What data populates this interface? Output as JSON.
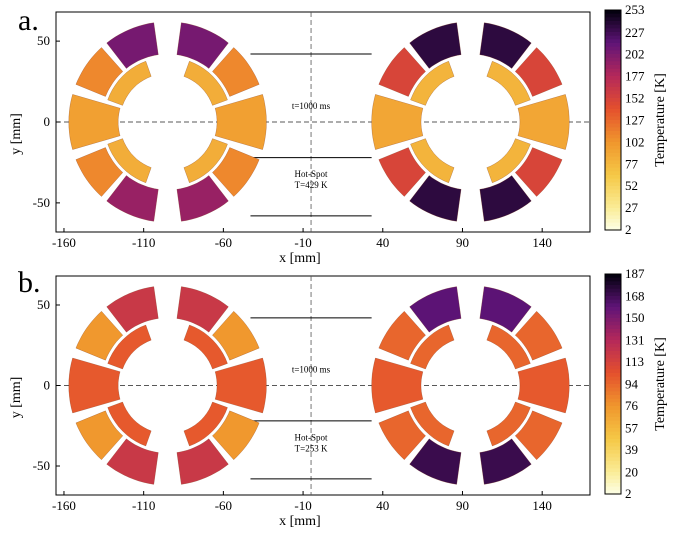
{
  "chart_data": [
    {
      "type": "heatmap",
      "panel_label": "a.",
      "xlabel": "x [mm]",
      "ylabel": "y [mm]",
      "xlim": [
        -165,
        170
      ],
      "ylim": [
        -68,
        68
      ],
      "xticks": [
        -160,
        -110,
        -60,
        -10,
        40,
        90,
        140
      ],
      "yticks": [
        -50,
        0,
        50
      ],
      "colorbar": {
        "label": "Temperature [K]",
        "min": 2,
        "max": 253,
        "ticks": [
          253,
          227,
          202,
          177,
          152,
          127,
          102,
          77,
          52,
          27,
          2
        ]
      },
      "annotations": [
        "t=1000 ms",
        "Hot-Spot",
        "T=429 K"
      ],
      "magnets": [
        {
          "center_x": -95,
          "blocks": [
            {
              "sector": "outer-top",
              "temperature_K": 205
            },
            {
              "sector": "outer-mid-top",
              "temperature_K": 110
            },
            {
              "sector": "outer-mid-bottom",
              "temperature_K": 110
            },
            {
              "sector": "outer-bottom",
              "temperature_K": 190
            },
            {
              "sector": "midplane",
              "temperature_K": 95
            },
            {
              "sector": "wedge",
              "temperature_K": 85
            }
          ]
        },
        {
          "center_x": 95,
          "blocks": [
            {
              "sector": "outer-top",
              "temperature_K": 235
            },
            {
              "sector": "outer-mid-top",
              "temperature_K": 150
            },
            {
              "sector": "outer-mid-bottom",
              "temperature_K": 150
            },
            {
              "sector": "outer-bottom",
              "temperature_K": 235
            },
            {
              "sector": "midplane",
              "temperature_K": 90
            },
            {
              "sector": "wedge",
              "temperature_K": 80
            }
          ]
        }
      ]
    },
    {
      "type": "heatmap",
      "panel_label": "b.",
      "xlabel": "x [mm]",
      "ylabel": "y [mm]",
      "xlim": [
        -165,
        170
      ],
      "ylim": [
        -68,
        68
      ],
      "xticks": [
        -160,
        -110,
        -60,
        -10,
        40,
        90,
        140
      ],
      "yticks": [
        -50,
        0,
        50
      ],
      "colorbar": {
        "label": "Temperature [K]",
        "min": 2,
        "max": 187,
        "ticks": [
          187,
          168,
          150,
          131,
          113,
          94,
          76,
          57,
          39,
          20,
          2
        ]
      },
      "annotations": [
        "t=1000 ms",
        "Hot-Spot",
        "T=253 K"
      ],
      "magnets": [
        {
          "center_x": -95,
          "blocks": [
            {
              "sector": "outer-top",
              "temperature_K": 120
            },
            {
              "sector": "outer-mid-top",
              "temperature_K": 75
            },
            {
              "sector": "outer-mid-bottom",
              "temperature_K": 75
            },
            {
              "sector": "outer-bottom",
              "temperature_K": 120
            },
            {
              "sector": "midplane",
              "temperature_K": 100
            },
            {
              "sector": "wedge",
              "temperature_K": 100
            }
          ]
        },
        {
          "center_x": 95,
          "blocks": [
            {
              "sector": "outer-top",
              "temperature_K": 160
            },
            {
              "sector": "outer-mid-top",
              "temperature_K": 95
            },
            {
              "sector": "outer-mid-bottom",
              "temperature_K": 95
            },
            {
              "sector": "outer-bottom",
              "temperature_K": 170
            },
            {
              "sector": "midplane",
              "temperature_K": 100
            },
            {
              "sector": "wedge",
              "temperature_K": 95
            }
          ]
        }
      ]
    }
  ]
}
